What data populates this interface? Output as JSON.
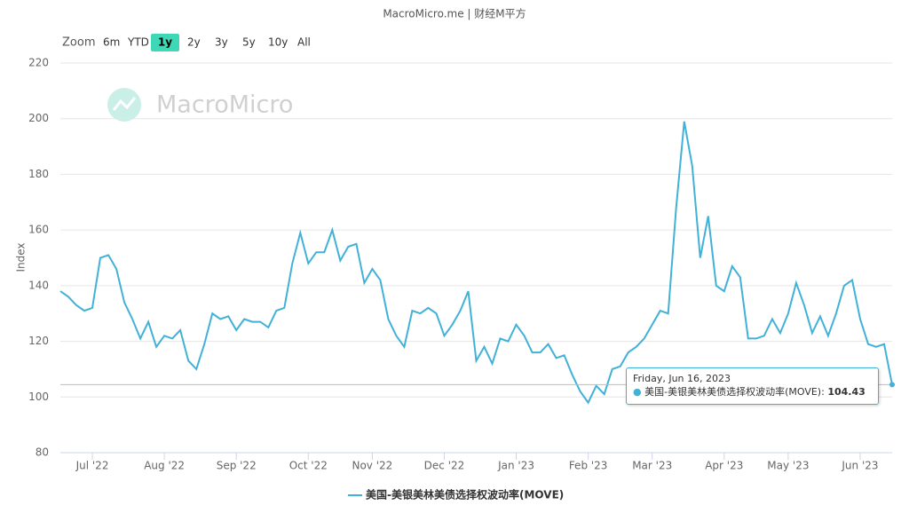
{
  "header": {
    "title": "MacroMicro.me | 财经M平方"
  },
  "range_selector": {
    "label": "Zoom",
    "buttons": [
      "6m",
      "YTD",
      "1y",
      "2y",
      "3y",
      "5y",
      "10y",
      "All"
    ],
    "selected": 2
  },
  "watermark": "MacroMicro",
  "tooltip": {
    "date": "Friday, Jun 16, 2023",
    "index": 104
  },
  "chart_data": {
    "type": "line",
    "ylabel": "Index",
    "categories": [
      null,
      null,
      null,
      null,
      "Jul '22",
      null,
      null,
      null,
      null,
      null,
      null,
      null,
      null,
      "Aug '22",
      null,
      null,
      null,
      null,
      null,
      null,
      null,
      null,
      "Sep '22",
      null,
      null,
      null,
      null,
      null,
      null,
      null,
      null,
      "Oct '22",
      null,
      null,
      null,
      null,
      null,
      null,
      null,
      "Nov '22",
      null,
      null,
      null,
      null,
      null,
      null,
      null,
      null,
      "Dec '22",
      null,
      null,
      null,
      null,
      null,
      null,
      null,
      null,
      "Jan '23",
      null,
      null,
      null,
      null,
      null,
      null,
      null,
      null,
      "Feb '23",
      null,
      null,
      null,
      null,
      null,
      null,
      null,
      "Mar '23",
      null,
      null,
      null,
      null,
      null,
      null,
      null,
      null,
      "Apr '23",
      null,
      null,
      null,
      null,
      null,
      null,
      null,
      "May '23",
      null,
      null,
      null,
      null,
      null,
      null,
      null,
      null,
      "Jun '23",
      null,
      null,
      null,
      null
    ],
    "series": [
      {
        "name": "美国-美银美林美债选择权波动率(MOVE)",
        "color": "#41b1d8",
        "values": [
          138,
          136,
          133,
          131,
          132,
          150,
          151,
          146,
          134,
          128,
          121,
          127,
          118,
          122,
          121,
          124,
          113,
          110,
          119,
          130,
          128,
          129,
          124,
          128,
          127,
          127,
          125,
          131,
          132,
          148,
          159,
          148,
          152,
          152,
          160,
          149,
          154,
          155,
          141,
          146,
          142,
          128,
          122,
          118,
          131,
          130,
          132,
          130,
          122,
          126,
          131,
          138,
          113,
          118,
          112,
          121,
          120,
          126,
          122,
          116,
          116,
          119,
          114,
          115,
          108,
          102,
          98,
          104,
          101,
          110,
          111,
          116,
          118,
          121,
          126,
          131,
          130,
          168,
          199,
          183,
          150,
          165,
          140,
          138,
          147,
          143,
          121,
          121,
          122,
          128,
          123,
          130,
          141,
          133,
          123,
          129,
          122,
          130,
          140,
          142,
          128,
          119,
          118,
          119,
          104.43
        ]
      }
    ],
    "ylim": [
      80,
      220
    ],
    "yticks": [
      80,
      100,
      120,
      140,
      160,
      180,
      200,
      220
    ],
    "grid": true
  }
}
